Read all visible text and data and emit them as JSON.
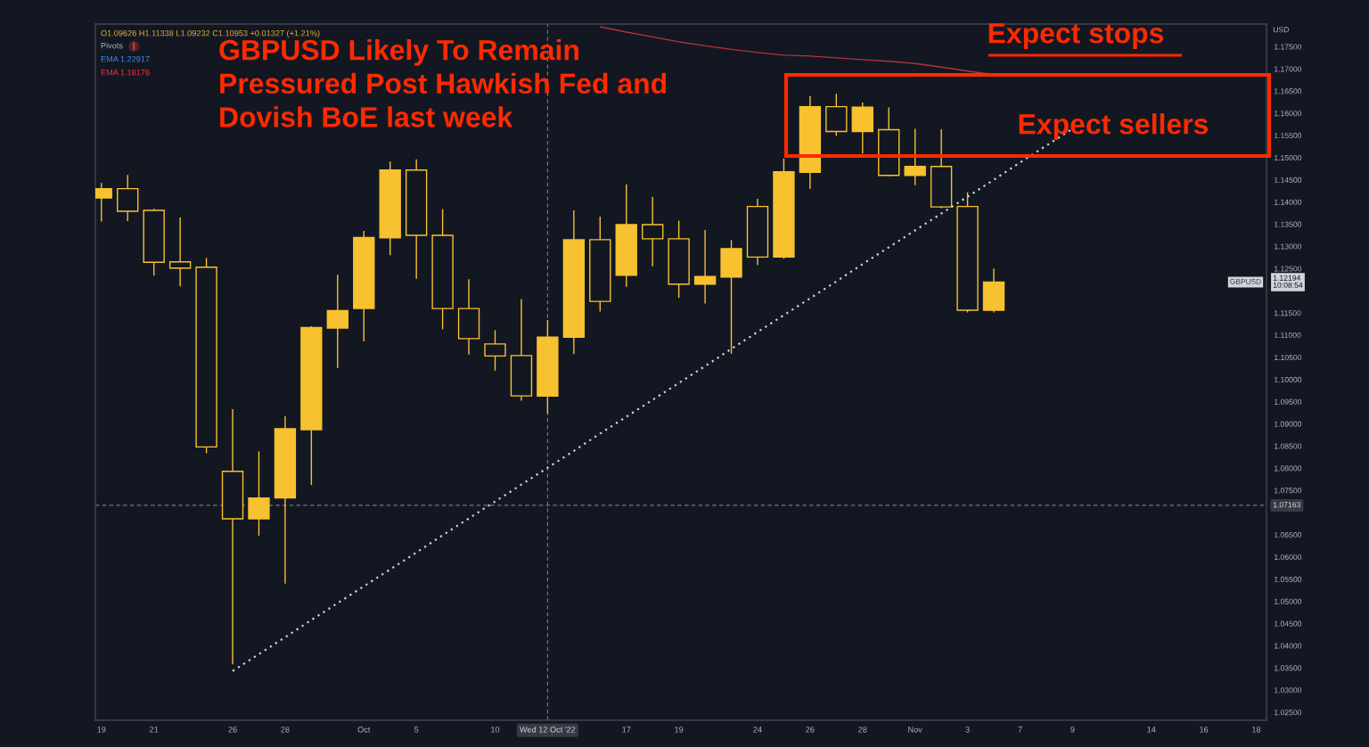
{
  "chart_data": {
    "type": "candlestick",
    "title": "GBPUSD Likely To Remain Pressured Post Hawkish Fed and Dovish BoE last week",
    "ylabel": "USD",
    "color": "#f7c12f",
    "categories": [
      "19",
      null,
      "21",
      null,
      null,
      "26",
      null,
      "28",
      null,
      null,
      "Oct",
      null,
      "5",
      null,
      null,
      "10",
      null,
      "Wed 12 Oct '22",
      null,
      null,
      "17",
      null,
      "19",
      null,
      null,
      "24",
      null,
      "26",
      null,
      "28",
      null,
      "Nov",
      null,
      "3",
      null,
      "7",
      null,
      "9",
      null,
      null,
      "14",
      null,
      "16",
      null,
      "18"
    ],
    "ohlc": [
      [
        1.1409,
        1.1443,
        1.1356,
        1.143
      ],
      [
        1.143,
        1.1461,
        1.1357,
        1.1379
      ],
      [
        1.1381,
        1.1385,
        1.1234,
        1.1264
      ],
      [
        1.1265,
        1.1365,
        1.121,
        1.1251
      ],
      [
        1.1253,
        1.1274,
        1.0834,
        1.0848
      ],
      [
        1.0793,
        1.0933,
        1.0358,
        1.0686
      ],
      [
        1.0686,
        1.0838,
        1.0648,
        1.0733
      ],
      [
        1.0733,
        1.0917,
        1.054,
        1.0889
      ],
      [
        1.0887,
        1.112,
        1.0762,
        1.1117
      ],
      [
        1.1116,
        1.1236,
        1.1026,
        1.1155
      ],
      [
        1.116,
        1.1335,
        1.1086,
        1.132
      ],
      [
        1.1319,
        1.1491,
        1.128,
        1.1472
      ],
      [
        1.1472,
        1.1496,
        1.1227,
        1.1325
      ],
      [
        1.1325,
        1.1384,
        1.1113,
        1.116
      ],
      [
        1.116,
        1.1226,
        1.1056,
        1.1092
      ],
      [
        1.108,
        1.1111,
        1.102,
        1.1053
      ],
      [
        1.1054,
        1.1181,
        1.0952,
        1.0963
      ],
      [
        1.09626,
        1.11338,
        1.09232,
        1.10953
      ],
      [
        1.1095,
        1.1381,
        1.1057,
        1.1315
      ],
      [
        1.1315,
        1.1367,
        1.1153,
        1.1176
      ],
      [
        1.1235,
        1.144,
        1.1209,
        1.1349
      ],
      [
        1.1349,
        1.1412,
        1.1255,
        1.1317
      ],
      [
        1.1317,
        1.1358,
        1.1184,
        1.1215
      ],
      [
        1.1215,
        1.1337,
        1.1171,
        1.1232
      ],
      [
        1.1231,
        1.1314,
        1.1058,
        1.1295
      ],
      [
        1.139,
        1.1407,
        1.1258,
        1.1276
      ],
      [
        1.1276,
        1.1498,
        1.1272,
        1.1468
      ],
      [
        1.1467,
        1.1639,
        1.143,
        1.1615
      ],
      [
        1.1615,
        1.1644,
        1.1549,
        1.1559
      ],
      [
        1.1559,
        1.1624,
        1.1509,
        1.1614
      ],
      [
        1.1563,
        1.1613,
        1.1458,
        1.146
      ],
      [
        1.146,
        1.1565,
        1.1438,
        1.148
      ],
      [
        1.148,
        1.1564,
        1.1386,
        1.1389
      ],
      [
        1.139,
        1.1422,
        1.1151,
        1.1156
      ],
      [
        1.1156,
        1.125,
        1.1151,
        1.12194
      ],
      null,
      null,
      null,
      null,
      null,
      null,
      null,
      null,
      null,
      null
    ],
    "series": [
      {
        "type": "line",
        "color": "#b2333d",
        "values": [
          null,
          null,
          null,
          null,
          null,
          null,
          null,
          null,
          null,
          null,
          null,
          null,
          null,
          null,
          null,
          null,
          null,
          null,
          null,
          1.1795,
          1.1783,
          1.1772,
          1.1761,
          1.1752,
          1.1744,
          1.1737,
          1.1731,
          1.1729,
          1.1725,
          1.1721,
          1.1717,
          1.1712,
          1.1704,
          1.1695,
          1.1687,
          null,
          null,
          null,
          null,
          null,
          null,
          null,
          null,
          null,
          null
        ]
      },
      {
        "type": "line",
        "color": "#d1d4dc",
        "line_style": "dotted",
        "values": [
          null,
          null,
          null,
          null,
          null,
          1.0343,
          1.0381,
          1.0419,
          1.0458,
          1.0496,
          1.0534,
          1.0572,
          1.061,
          1.0649,
          1.0687,
          1.0725,
          1.0763,
          1.0801,
          1.0839,
          1.0878,
          1.0916,
          1.0954,
          1.0992,
          1.103,
          1.1069,
          1.1107,
          1.1145,
          1.1183,
          1.1221,
          1.126,
          1.1298,
          1.1336,
          1.1374,
          1.1412,
          1.145,
          1.1489,
          1.1527,
          1.1565,
          null,
          null,
          null,
          null,
          null,
          null,
          null
        ]
      }
    ],
    "ylim": [
      1.0232,
      1.1801
    ],
    "yticks": [
      {
        "value": 1.025,
        "label": "1.02500"
      },
      {
        "value": 1.03,
        "label": "1.03000"
      },
      {
        "value": 1.035,
        "label": "1.03500"
      },
      {
        "value": 1.04,
        "label": "1.04000"
      },
      {
        "value": 1.045,
        "label": "1.04500"
      },
      {
        "value": 1.05,
        "label": "1.05000"
      },
      {
        "value": 1.055,
        "label": "1.05500"
      },
      {
        "value": 1.06,
        "label": "1.06000"
      },
      {
        "value": 1.065,
        "label": "1.06500"
      },
      {
        "value": 1.075,
        "label": "1.07500"
      },
      {
        "value": 1.08,
        "label": "1.08000"
      },
      {
        "value": 1.085,
        "label": "1.08500"
      },
      {
        "value": 1.09,
        "label": "1.09000"
      },
      {
        "value": 1.095,
        "label": "1.09500"
      },
      {
        "value": 1.1,
        "label": "1.10000"
      },
      {
        "value": 1.105,
        "label": "1.10500"
      },
      {
        "value": 1.11,
        "label": "1.11000"
      },
      {
        "value": 1.115,
        "label": "1.11500"
      },
      {
        "value": 1.125,
        "label": "1.12500"
      },
      {
        "value": 1.13,
        "label": "1.13000"
      },
      {
        "value": 1.135,
        "label": "1.13500"
      },
      {
        "value": 1.14,
        "label": "1.14000"
      },
      {
        "value": 1.145,
        "label": "1.14500"
      },
      {
        "value": 1.15,
        "label": "1.15000"
      },
      {
        "value": 1.155,
        "label": "1.15500"
      },
      {
        "value": 1.16,
        "label": "1.16000"
      },
      {
        "value": 1.165,
        "label": "1.16500"
      },
      {
        "value": 1.17,
        "label": "1.17000"
      },
      {
        "value": 1.175,
        "label": "1.17500"
      }
    ],
    "ref_lines": [
      {
        "axis": "x",
        "value": "Wed 12 Oct '22",
        "line_style": "dashed",
        "color": "#787b86"
      },
      {
        "axis": "y",
        "value": 1.07163,
        "label": "1.07163",
        "line_style": "dashed",
        "color": "#787b86"
      }
    ],
    "annotations": [
      "O1.09626 H1.11338 L1.09232 C1.10953 +0.01327 (+1.21%)",
      "Pivots",
      "EMA 1.22917",
      "EMA 1.18176",
      "Expect stops",
      "Expect sellers",
      "1.12194\n10:08:54",
      "GBPUSD"
    ]
  }
}
